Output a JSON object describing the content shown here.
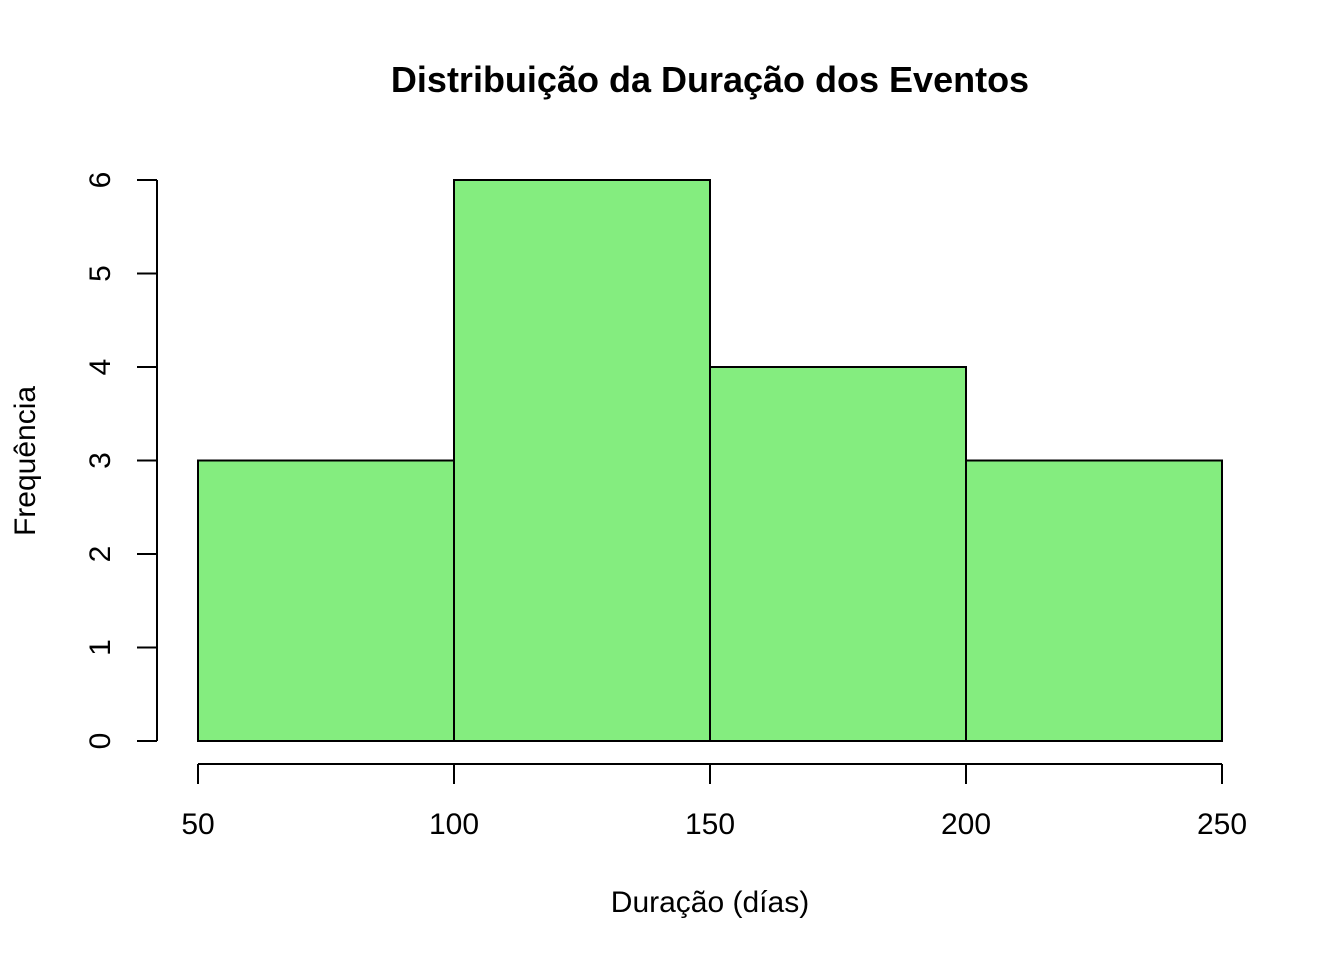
{
  "chart_data": {
    "type": "bar",
    "subtype": "histogram",
    "title": "Distribuição da Duração dos Eventos",
    "xlabel": "Duração (días)",
    "ylabel": "Frequência",
    "bins": [
      {
        "from": 50,
        "to": 100,
        "count": 3
      },
      {
        "from": 100,
        "to": 150,
        "count": 6
      },
      {
        "from": 150,
        "to": 200,
        "count": 4
      },
      {
        "from": 200,
        "to": 250,
        "count": 3
      }
    ],
    "x_ticks": [
      50,
      100,
      150,
      200,
      250
    ],
    "y_ticks": [
      0,
      1,
      2,
      3,
      4,
      5,
      6
    ],
    "xlim": [
      50,
      250
    ],
    "ylim": [
      0,
      6
    ],
    "grid": false,
    "legend": "none",
    "colors": {
      "bar_fill": "#84ED7F",
      "bar_stroke": "#000000",
      "axis": "#000000",
      "background": "#FFFFFF"
    }
  }
}
